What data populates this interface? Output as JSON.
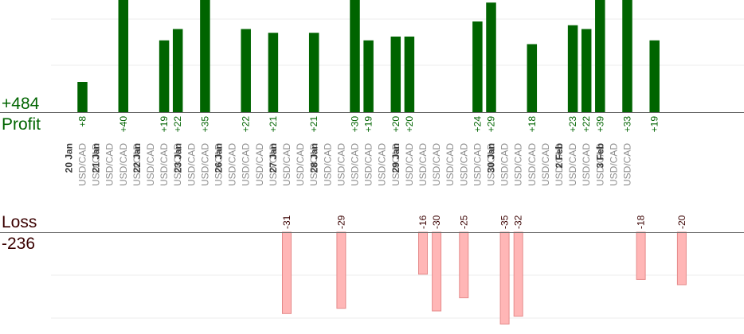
{
  "summary": {
    "profit_total": "+484",
    "profit_label": "Profit",
    "loss_label": "Loss",
    "loss_total": "-236"
  },
  "colors": {
    "profit_bar": "#006400",
    "profit_text": "#006400",
    "loss_bar": "#ffb6b6",
    "loss_bar_stroke": "#e58a8a",
    "loss_text": "#3a0000",
    "date_text": "#3a3a3a",
    "pair_text": "#8c8c8c",
    "axis": "#666666",
    "grid": "#eeeeee"
  },
  "chart_data": {
    "type": "bar",
    "pair": "USD/CAD",
    "days": [
      {
        "date": "20 Jan",
        "trades": 2
      },
      {
        "date": "21 Jan",
        "trades": 3
      },
      {
        "date": "22 Jan",
        "trades": 3
      },
      {
        "date": "23 Jan",
        "trades": 3
      },
      {
        "date": "26 Jan",
        "trades": 4
      },
      {
        "date": "27 Jan",
        "trades": 3
      },
      {
        "date": "28 Jan",
        "trades": 6
      },
      {
        "date": "29 Jan",
        "trades": 7
      },
      {
        "date": "30 Jan",
        "trades": 5
      },
      {
        "date": "2 Feb",
        "trades": 3
      },
      {
        "date": "3 Feb",
        "trades": 2
      }
    ],
    "trades": [
      {
        "value": 8,
        "label": "+8"
      },
      {
        "value": 0,
        "label": ""
      },
      {
        "value": 0,
        "label": ""
      },
      {
        "value": 40,
        "label": "+40"
      },
      {
        "value": 0,
        "label": ""
      },
      {
        "value": 0,
        "label": ""
      },
      {
        "value": 19,
        "label": "+19"
      },
      {
        "value": 22,
        "label": "+22"
      },
      {
        "value": 0,
        "label": ""
      },
      {
        "value": 35,
        "label": "+35"
      },
      {
        "value": 0,
        "label": ""
      },
      {
        "value": 0,
        "label": ""
      },
      {
        "value": 22,
        "label": "+22"
      },
      {
        "value": 0,
        "label": ""
      },
      {
        "value": 21,
        "label": "+21"
      },
      {
        "value": -31,
        "label": "-31"
      },
      {
        "value": 0,
        "label": ""
      },
      {
        "value": 21,
        "label": "+21"
      },
      {
        "value": 0,
        "label": ""
      },
      {
        "value": -29,
        "label": "-29"
      },
      {
        "value": 30,
        "label": "+30"
      },
      {
        "value": 19,
        "label": "+19"
      },
      {
        "value": 0,
        "label": ""
      },
      {
        "value": 20,
        "label": "+20"
      },
      {
        "value": 20,
        "label": "+20"
      },
      {
        "value": -16,
        "label": "-16"
      },
      {
        "value": -30,
        "label": "-30"
      },
      {
        "value": 0,
        "label": ""
      },
      {
        "value": -25,
        "label": "-25"
      },
      {
        "value": 24,
        "label": "+24"
      },
      {
        "value": 29,
        "label": "+29"
      },
      {
        "value": -35,
        "label": "-35"
      },
      {
        "value": -32,
        "label": "-32"
      },
      {
        "value": 18,
        "label": "+18"
      },
      {
        "value": 0,
        "label": ""
      },
      {
        "value": 0,
        "label": ""
      },
      {
        "value": 23,
        "label": "+23"
      },
      {
        "value": 22,
        "label": "+22"
      },
      {
        "value": 39,
        "label": "+39"
      },
      {
        "value": 0,
        "label": ""
      },
      {
        "value": 33,
        "label": "+33"
      },
      {
        "value": -18,
        "label": "-18"
      },
      {
        "value": 19,
        "label": "+19"
      },
      {
        "value": 0,
        "label": ""
      },
      {
        "value": -20,
        "label": "-20"
      }
    ],
    "grid": true
  }
}
